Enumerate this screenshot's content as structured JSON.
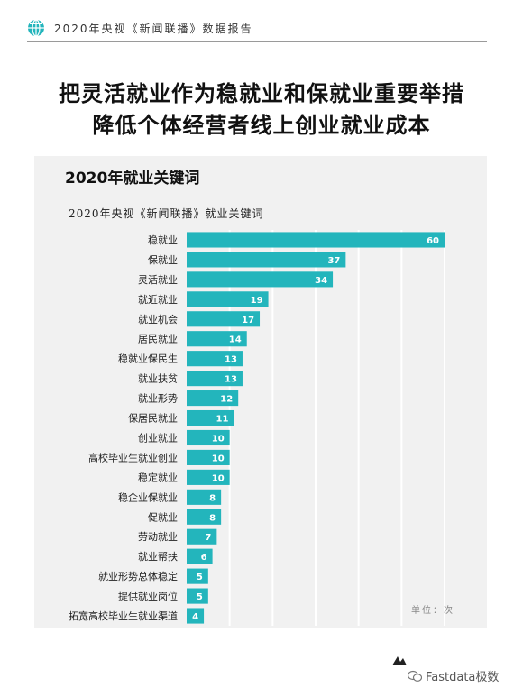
{
  "header": {
    "text": "2020年央视《新闻联播》数据报告"
  },
  "headline": {
    "line1": "把灵活就业作为稳就业和保就业重要举措",
    "line2": "降低个体经营者线上创业就业成本"
  },
  "panel": {
    "title": "2020年就业关键词"
  },
  "chart_data": {
    "type": "bar",
    "orientation": "horizontal",
    "title": "2020年央视《新闻联播》就业关键词",
    "categories": [
      "稳就业",
      "保就业",
      "灵活就业",
      "就近就业",
      "就业机会",
      "居民就业",
      "稳就业保民生",
      "就业扶贫",
      "就业形势",
      "保居民就业",
      "创业就业",
      "高校毕业生就业创业",
      "稳定就业",
      "稳企业保就业",
      "促就业",
      "劳动就业",
      "就业帮扶",
      "就业形势总体稳定",
      "提供就业岗位",
      "拓宽高校毕业生就业渠道"
    ],
    "values": [
      60,
      37,
      34,
      19,
      17,
      14,
      13,
      13,
      12,
      11,
      10,
      10,
      10,
      8,
      8,
      7,
      6,
      5,
      5,
      4
    ],
    "xlim": [
      0,
      60
    ],
    "grid": true,
    "unit_label": "单位：次",
    "bar_color": "#23b5bc"
  },
  "footer": {
    "brand": "Fastdata极数",
    "watermark": "Fastdata极数"
  }
}
